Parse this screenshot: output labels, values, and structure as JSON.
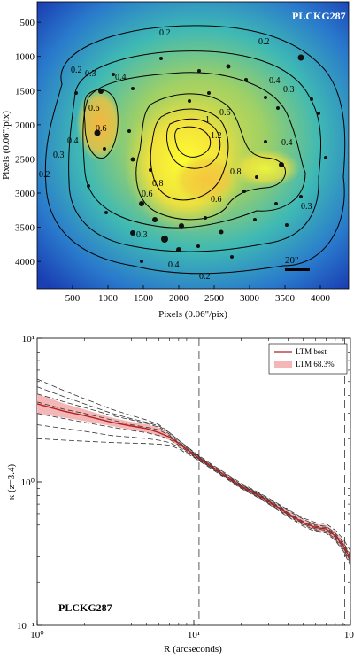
{
  "chart_data": [
    {
      "type": "heatmap",
      "title": "PLCKG287",
      "xlabel": "Pixels (0.06\"/pix)",
      "ylabel": "Pixels (0.06\"/pix)",
      "xlim": [
        0,
        4400
      ],
      "ylim": [
        4400,
        200
      ],
      "x_ticks": [
        500,
        1000,
        1500,
        2000,
        2500,
        3000,
        3500,
        4000
      ],
      "y_ticks": [
        500,
        1000,
        1500,
        2000,
        2500,
        3000,
        3500,
        4000
      ],
      "contour_levels": [
        "0.2",
        "0.3",
        "0.4",
        "0.6",
        "0.8",
        "1",
        "1.2"
      ],
      "scale_bar_label": "20\"",
      "colormap": [
        "#1d3fb3",
        "#2f8fd0",
        "#42c0a8",
        "#a7d15a",
        "#f3d23a",
        "#ffff33"
      ]
    },
    {
      "type": "line",
      "title": "PLCKG287",
      "xlabel": "R (arcseconds)",
      "ylabel": "κ (z=3.4)",
      "x_scale": "log",
      "y_scale": "log",
      "xlim": [
        1,
        100
      ],
      "ylim": [
        0.1,
        10
      ],
      "x_tick_labels": [
        "10⁰",
        "10¹",
        "10²"
      ],
      "y_tick_labels": [
        "10⁻¹",
        "10⁰",
        "10¹"
      ],
      "vlines": [
        10.8,
        92
      ],
      "legend": {
        "placement": "top-right",
        "entries": [
          "LTM best",
          "LTM 68.3%"
        ]
      },
      "series": [
        {
          "name": "LTM best",
          "color": "#b22222",
          "x": [
            1,
            1.5,
            2,
            3,
            4,
            5,
            6,
            7,
            8,
            10,
            12,
            15,
            20,
            25,
            30,
            40,
            50,
            60,
            70,
            80,
            90,
            100
          ],
          "y": [
            3.5,
            3.1,
            2.9,
            2.6,
            2.45,
            2.35,
            2.2,
            2.05,
            1.85,
            1.55,
            1.35,
            1.15,
            0.93,
            0.82,
            0.73,
            0.6,
            0.52,
            0.48,
            0.47,
            0.42,
            0.36,
            0.29
          ]
        },
        {
          "name": "LTM 68.3%",
          "color": "#f4b6b6",
          "x": [
            1,
            1.5,
            2,
            3,
            4,
            5,
            6,
            7,
            8,
            10,
            12,
            15,
            20,
            25,
            30,
            40,
            50,
            60,
            70,
            80,
            90,
            100
          ],
          "lower": [
            3.0,
            2.8,
            2.65,
            2.45,
            2.3,
            2.2,
            2.1,
            1.95,
            1.78,
            1.5,
            1.31,
            1.12,
            0.9,
            0.79,
            0.7,
            0.58,
            0.5,
            0.46,
            0.44,
            0.39,
            0.33,
            0.27
          ],
          "upper": [
            4.1,
            3.5,
            3.2,
            2.8,
            2.62,
            2.52,
            2.38,
            2.15,
            1.92,
            1.6,
            1.39,
            1.19,
            0.97,
            0.85,
            0.76,
            0.63,
            0.55,
            0.51,
            0.5,
            0.45,
            0.39,
            0.31
          ]
        }
      ],
      "dashed_x": [
        1,
        1.5,
        2,
        3,
        4,
        5,
        6,
        7,
        8,
        10,
        12,
        15,
        20,
        25,
        30,
        40,
        50,
        60,
        70,
        80,
        90,
        100
      ],
      "dashed_curves": [
        [
          5.2,
          4.3,
          3.8,
          3.2,
          2.9,
          2.7,
          2.5,
          2.2,
          1.95,
          1.62,
          1.4,
          1.2,
          0.98,
          0.86,
          0.77,
          0.64,
          0.56,
          0.52,
          0.51,
          0.46,
          0.4,
          0.33
        ],
        [
          4.6,
          3.9,
          3.5,
          3.0,
          2.75,
          2.6,
          2.45,
          2.2,
          1.95,
          1.6,
          1.38,
          1.18,
          0.96,
          0.85,
          0.76,
          0.63,
          0.55,
          0.5,
          0.49,
          0.44,
          0.38,
          0.31
        ],
        [
          4.1,
          3.6,
          3.3,
          2.9,
          2.7,
          2.55,
          2.4,
          2.15,
          1.9,
          1.58,
          1.37,
          1.16,
          0.95,
          0.84,
          0.75,
          0.61,
          0.53,
          0.49,
          0.48,
          0.43,
          0.37,
          0.3
        ],
        [
          3.6,
          3.2,
          3.0,
          2.7,
          2.5,
          2.4,
          2.3,
          2.1,
          1.87,
          1.56,
          1.36,
          1.15,
          0.94,
          0.83,
          0.74,
          0.6,
          0.52,
          0.48,
          0.47,
          0.42,
          0.36,
          0.29
        ],
        [
          3.0,
          2.75,
          2.6,
          2.4,
          2.28,
          2.2,
          2.1,
          1.98,
          1.8,
          1.52,
          1.33,
          1.13,
          0.92,
          0.81,
          0.72,
          0.59,
          0.51,
          0.47,
          0.46,
          0.41,
          0.35,
          0.28
        ],
        [
          2.5,
          2.35,
          2.25,
          2.1,
          2.05,
          2.0,
          1.95,
          1.88,
          1.75,
          1.5,
          1.32,
          1.12,
          0.91,
          0.8,
          0.71,
          0.58,
          0.5,
          0.46,
          0.45,
          0.4,
          0.34,
          0.27
        ],
        [
          2.0,
          1.95,
          1.92,
          1.88,
          1.86,
          1.85,
          1.83,
          1.8,
          1.7,
          1.48,
          1.3,
          1.11,
          0.9,
          0.79,
          0.7,
          0.57,
          0.49,
          0.45,
          0.44,
          0.39,
          0.33,
          0.26
        ]
      ],
      "annotation": "PLCKG287"
    }
  ]
}
